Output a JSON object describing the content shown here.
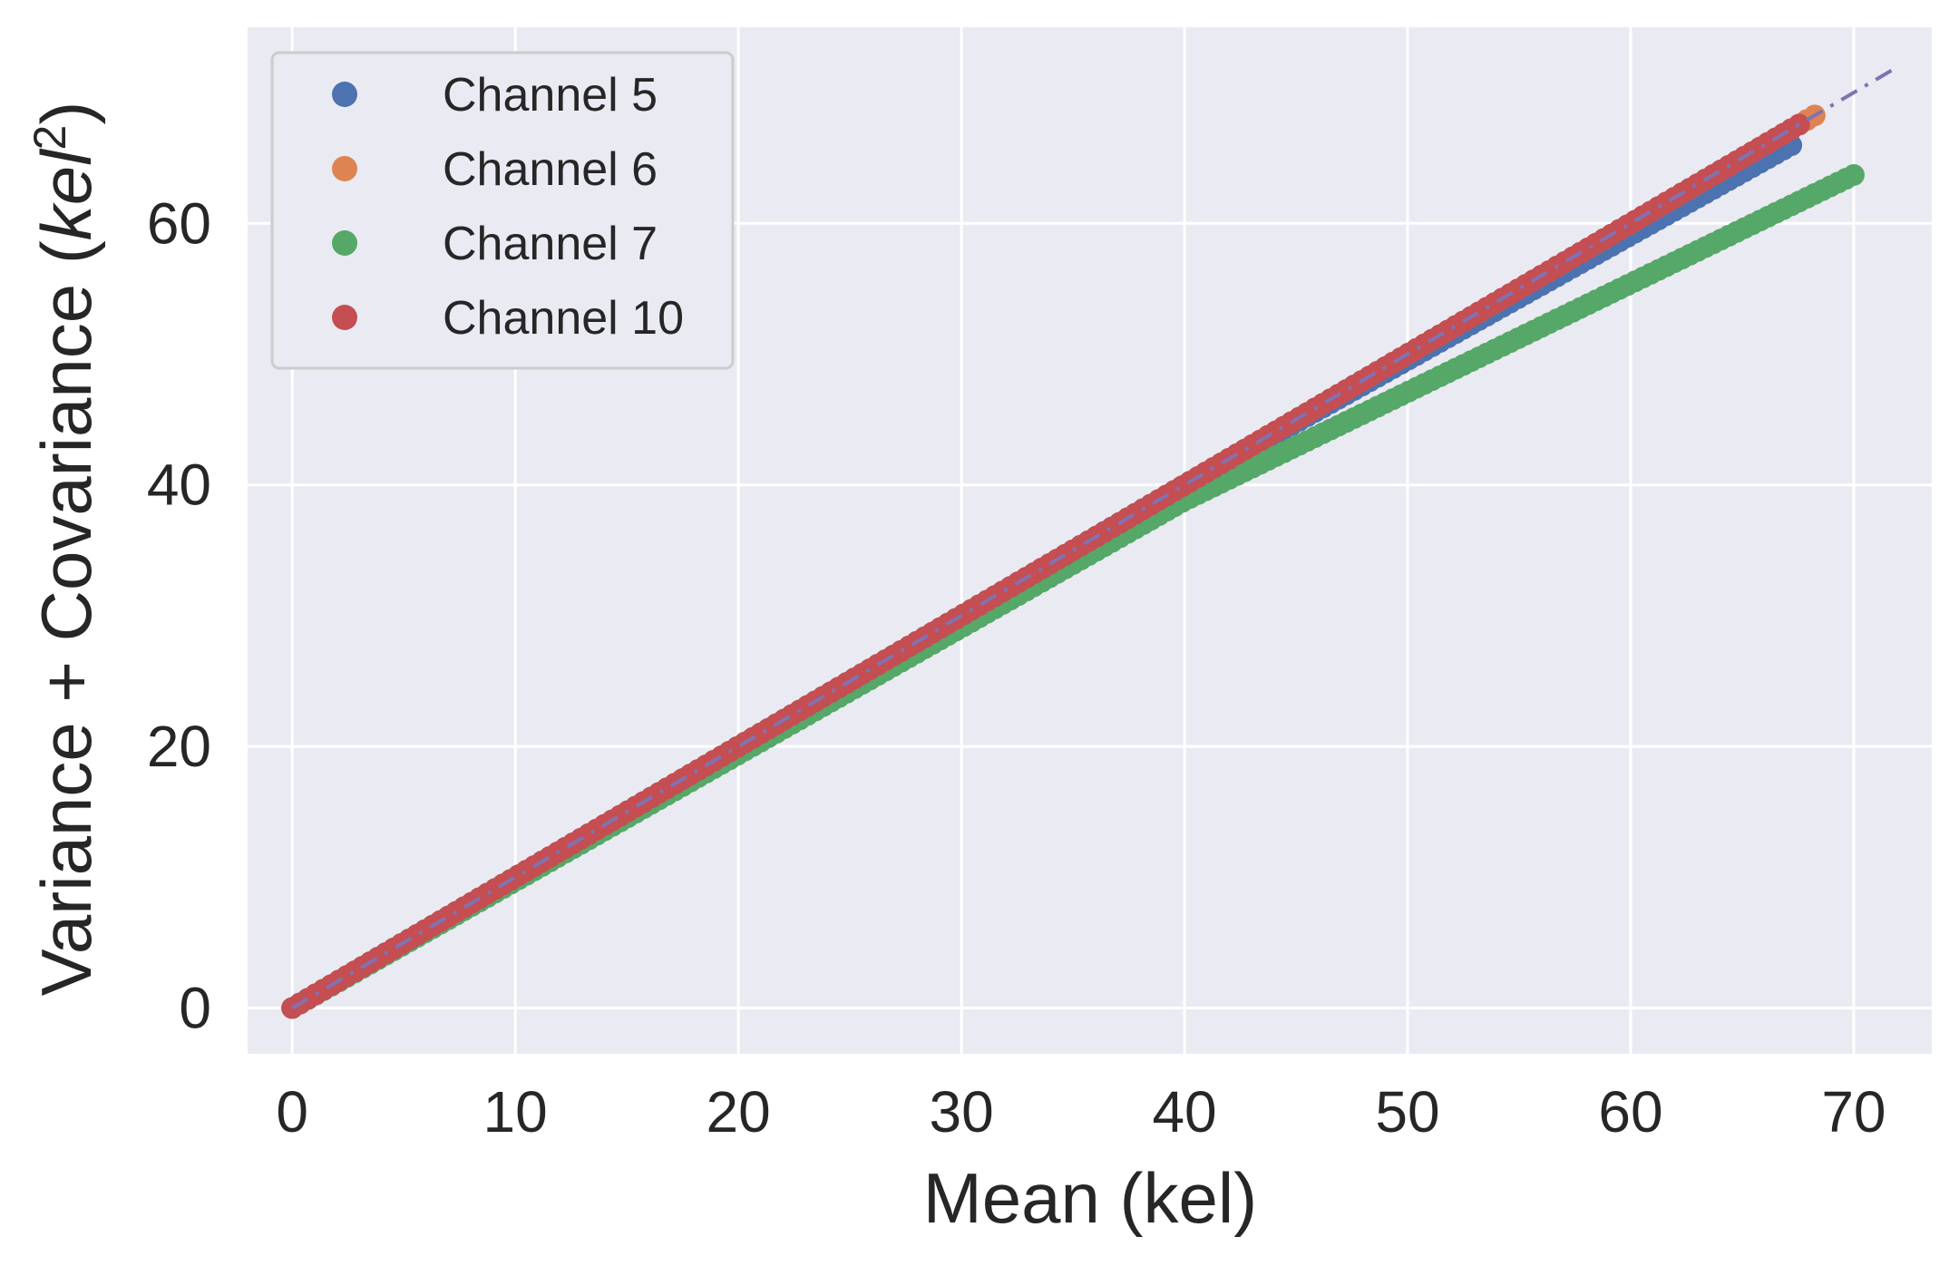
{
  "chart_data": {
    "type": "scatter",
    "title": "",
    "xlabel": "Mean (kel)",
    "ylabel_main": "Variance + Covariance (",
    "ylabel_italic": "kel",
    "ylabel_sup": "2",
    "ylabel_end": ")",
    "xlim": [
      -2,
      73.5
    ],
    "ylim": [
      -3.5,
      75
    ],
    "xticks": [
      0,
      10,
      20,
      30,
      40,
      50,
      60,
      70
    ],
    "yticks": [
      0,
      20,
      40,
      60
    ],
    "grid": true,
    "legend_position": "top-left",
    "series": [
      {
        "name": "Channel 5",
        "color": "#4c72b0",
        "x_start": 0,
        "x_end": 67.5,
        "slope_low": 1.0,
        "slope_high": 0.955,
        "bend_at": 40
      },
      {
        "name": "Channel 6",
        "color": "#dd8452",
        "x_start": 0,
        "x_end": 68.5,
        "slope_low": 1.0,
        "slope_high": 1.0,
        "bend_at": 40
      },
      {
        "name": "Channel 7",
        "color": "#55a868",
        "x_start": 0,
        "x_end": 70,
        "slope_low": 0.97,
        "slope_high": 0.83,
        "bend_at": 40
      },
      {
        "name": "Channel 10",
        "color": "#c44e52",
        "x_start": 0,
        "x_end": 67.8,
        "slope_low": 1.0,
        "slope_high": 1.0,
        "bend_at": 40
      }
    ],
    "reference_line": {
      "x": [
        0,
        72
      ],
      "y": [
        0,
        72
      ],
      "color": "#8172b3",
      "style": "dashdot"
    }
  }
}
